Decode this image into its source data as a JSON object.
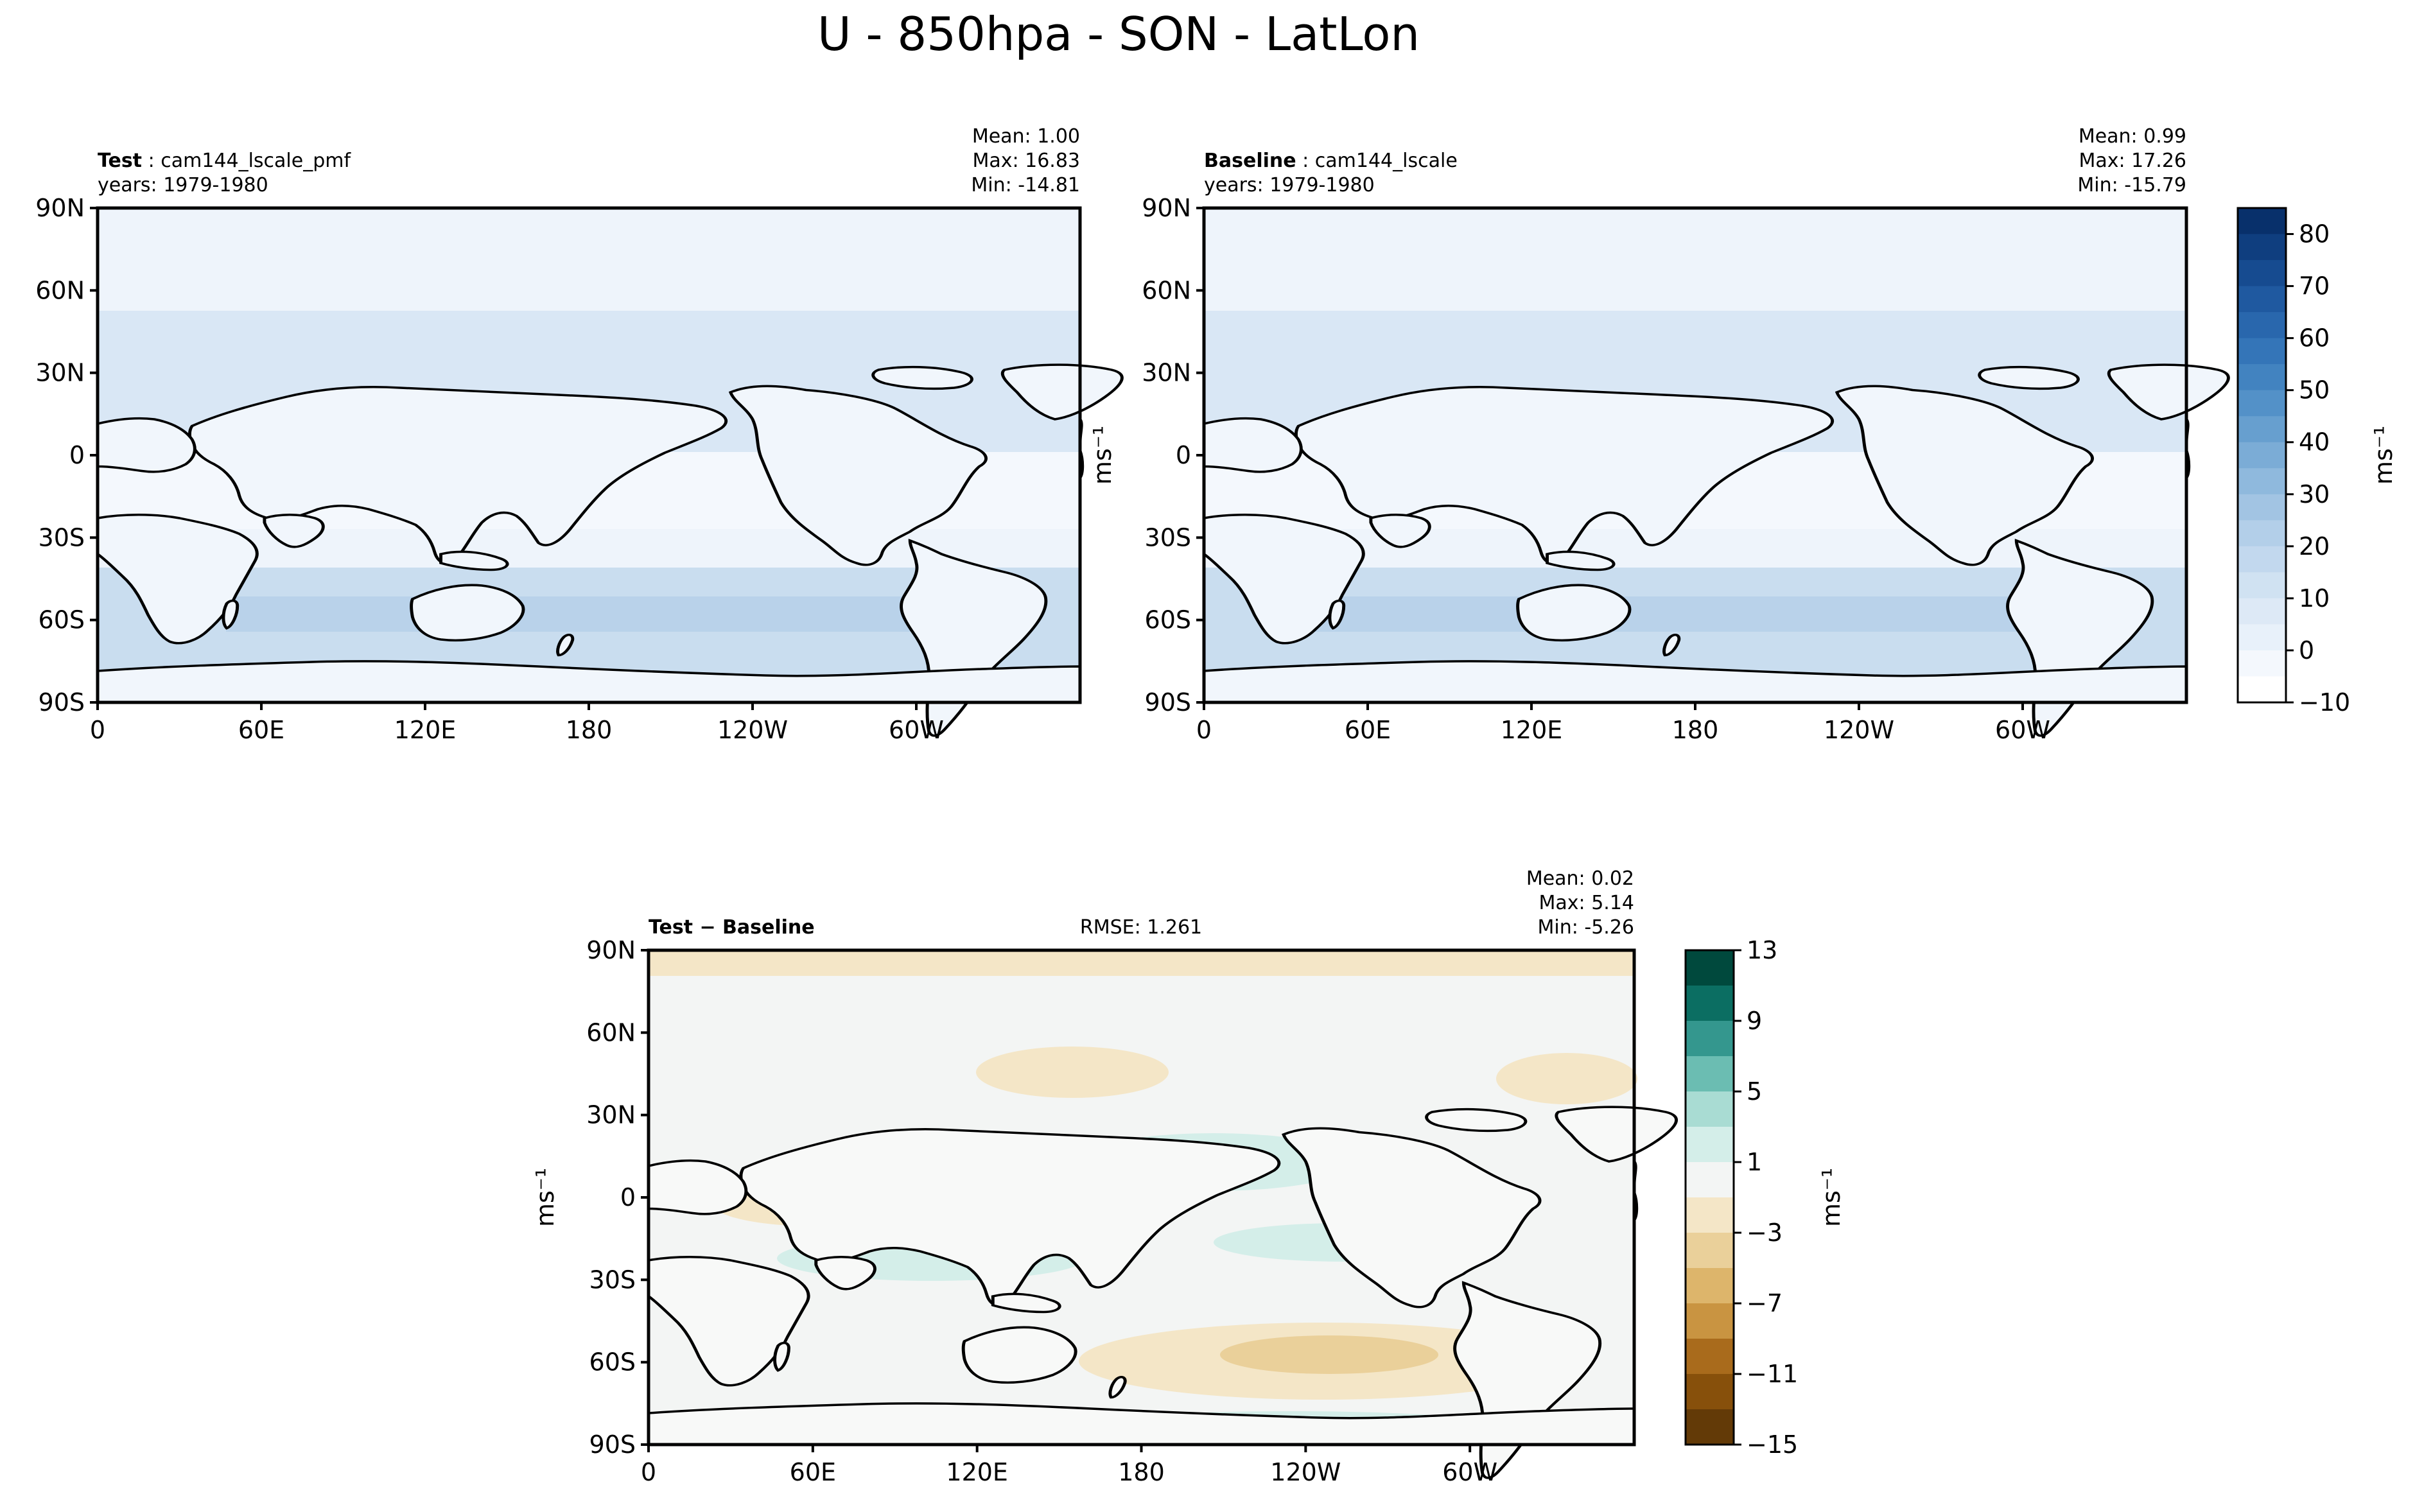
{
  "figure": {
    "title": "U - 850hpa - SON - LatLon",
    "colors": {
      "land_outline": "#000000",
      "background": "#ffffff"
    }
  },
  "panels": [
    {
      "id": "test",
      "label_bold": "Test",
      "label_text": "cam144_lscale_pmf",
      "years": "years: 1979-1980",
      "stats": {
        "mean": "Mean:  1.00",
        "max": "Max: 16.83",
        "min": "Min: -14.81"
      },
      "ylabel": "ms⁻¹"
    },
    {
      "id": "baseline",
      "label_bold": "Baseline",
      "label_text": "cam144_lscale",
      "years": "years: 1979-1980",
      "stats": {
        "mean": "Mean:  0.99",
        "max": "Max: 17.26",
        "min": "Min: -15.79"
      }
    },
    {
      "id": "diff",
      "label_bold": "Test − Baseline",
      "rmse": "RMSE: 1.261",
      "stats": {
        "mean": "Mean:  0.02",
        "max": "Max:  5.14",
        "min": "Min: -5.26"
      },
      "ylabel": "ms⁻¹"
    }
  ],
  "axes": {
    "lat_ticks": [
      "90N",
      "60N",
      "30N",
      "0",
      "30S",
      "60S",
      "90S"
    ],
    "lon_ticks": [
      "0",
      "60E",
      "120E",
      "180",
      "120W",
      "60W"
    ]
  },
  "colorbars": [
    {
      "id": "field",
      "label": "ms⁻¹",
      "ticks": [
        "−10",
        "0",
        "10",
        "20",
        "30",
        "40",
        "50",
        "60",
        "70",
        "80"
      ],
      "levels": 19,
      "colors": [
        "#ffffff",
        "#f4f8fd",
        "#e8f1fa",
        "#dde9f6",
        "#d0e2f2",
        "#c2d8ee",
        "#b3cfe9",
        "#a2c4e3",
        "#8fb9dd",
        "#7bacd6",
        "#679fcf",
        "#5391c8",
        "#4283c0",
        "#3475b8",
        "#2967ad",
        "#1f59a0",
        "#164b90",
        "#0f3e7f",
        "#08306b"
      ]
    },
    {
      "id": "diff",
      "label": "ms⁻¹",
      "ticks": [
        "13",
        "9",
        "5",
        "1",
        "−3",
        "−7",
        "−11",
        "−15"
      ],
      "colors": [
        "#00493d",
        "#0b6e62",
        "#34978e",
        "#6bbdb2",
        "#a9dcd3",
        "#d4eee9",
        "#f3f5f4",
        "#f4e6c7",
        "#ead09a",
        "#ddb56b",
        "#c99441",
        "#a96b1c",
        "#87500b",
        "#633a07"
      ]
    }
  ],
  "chart_data": [
    {
      "type": "heatmap",
      "title": "Test : cam144_lscale_pmf",
      "subtitle": "years: 1979-1980",
      "xlim": [
        0,
        360
      ],
      "ylim": [
        -90,
        90
      ],
      "clim": [
        -10,
        85
      ],
      "mean": 1.0,
      "max": 16.83,
      "min": -14.81
    },
    {
      "type": "heatmap",
      "title": "Baseline : cam144_lscale",
      "subtitle": "years: 1979-1980",
      "xlim": [
        0,
        360
      ],
      "ylim": [
        -90,
        90
      ],
      "clim": [
        -10,
        85
      ],
      "mean": 0.99,
      "max": 17.26,
      "min": -15.79
    },
    {
      "type": "heatmap",
      "title": "Test − Baseline",
      "xlim": [
        0,
        360
      ],
      "ylim": [
        -90,
        90
      ],
      "clim": [
        -15,
        13
      ],
      "mean": 0.02,
      "max": 5.14,
      "min": -5.26,
      "rmse": 1.261
    }
  ]
}
